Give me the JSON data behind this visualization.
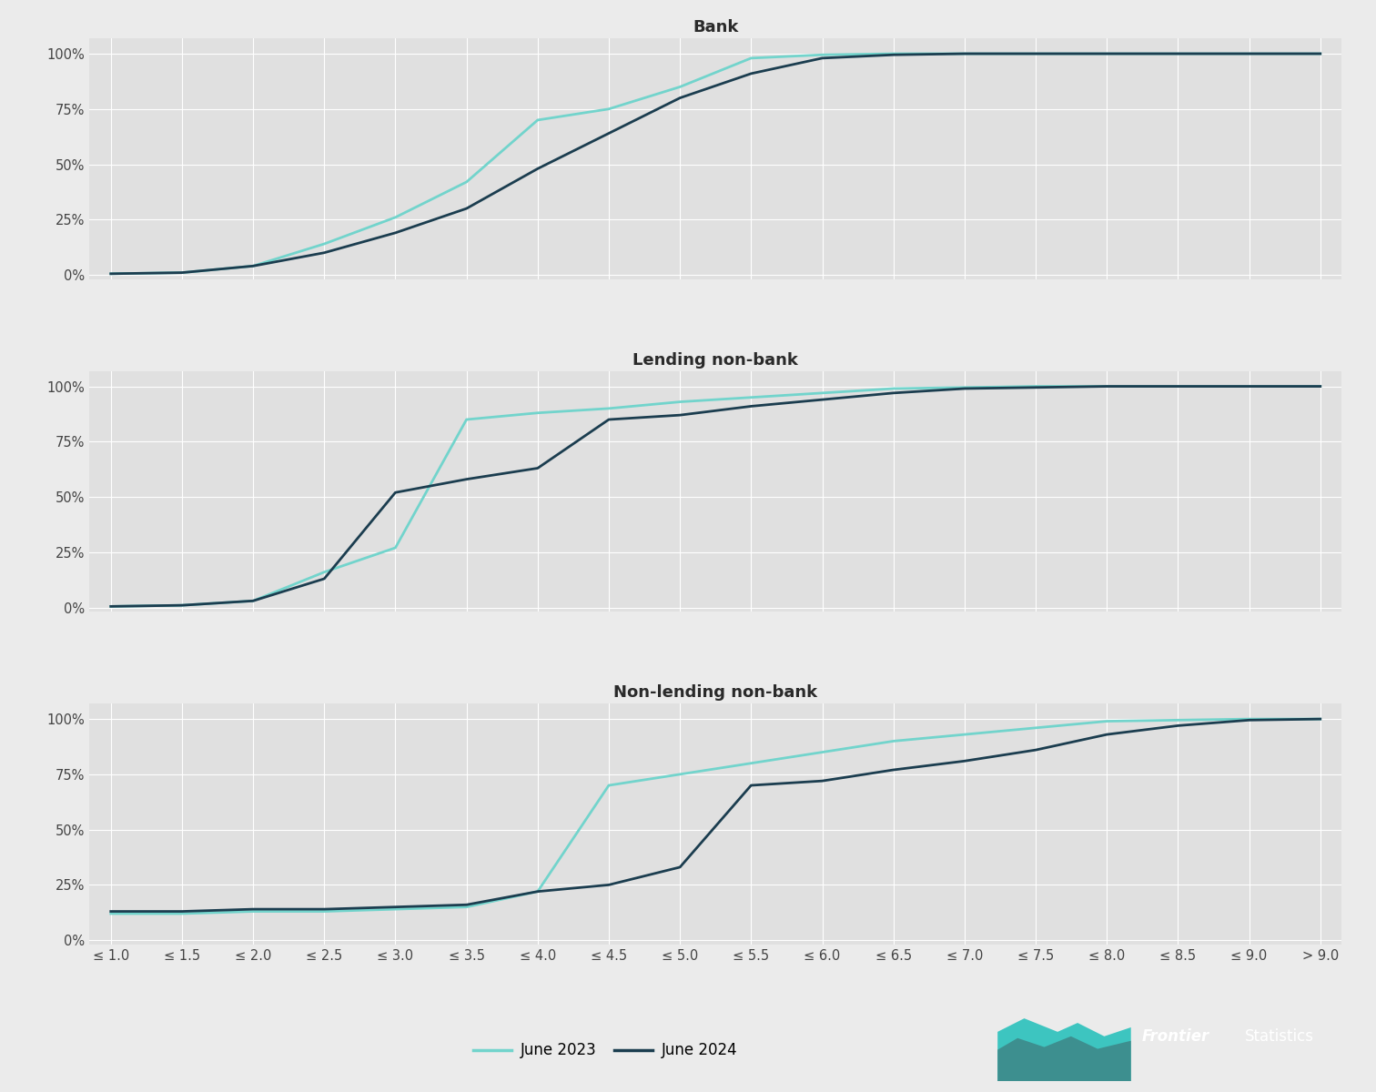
{
  "x_labels": [
    "≤ 1.0",
    "≤ 1.5",
    "≤ 2.0",
    "≤ 2.5",
    "≤ 3.0",
    "≤ 3.5",
    "≤ 4.0",
    "≤ 4.5",
    "≤ 5.0",
    "≤ 5.5",
    "≤ 6.0",
    "≤ 6.5",
    "≤ 7.0",
    "≤ 7.5",
    "≤ 8.0",
    "≤ 8.5",
    "≤ 9.0",
    "> 9.0"
  ],
  "bank": {
    "title": "Bank",
    "jun2023": [
      0.5,
      1.0,
      4.0,
      14.0,
      26.0,
      42.0,
      70.0,
      75.0,
      85.0,
      98.0,
      99.5,
      100.0,
      100.0,
      100.0,
      100.0,
      100.0,
      100.0,
      100.0
    ],
    "jun2024": [
      0.5,
      1.0,
      4.0,
      10.0,
      19.0,
      30.0,
      48.0,
      64.0,
      80.0,
      91.0,
      98.0,
      99.5,
      100.0,
      100.0,
      100.0,
      100.0,
      100.0,
      100.0
    ]
  },
  "lending_nonbank": {
    "title": "Lending non-bank",
    "jun2023": [
      0.5,
      1.0,
      3.0,
      16.0,
      27.0,
      85.0,
      88.0,
      90.0,
      93.0,
      95.0,
      97.0,
      99.0,
      99.5,
      100.0,
      100.0,
      100.0,
      100.0,
      100.0
    ],
    "jun2024": [
      0.5,
      1.0,
      3.0,
      13.0,
      52.0,
      58.0,
      63.0,
      85.0,
      87.0,
      91.0,
      94.0,
      97.0,
      99.0,
      99.5,
      100.0,
      100.0,
      100.0,
      100.0
    ]
  },
  "nonlending_nonbank": {
    "title": "Non-lending non-bank",
    "jun2023": [
      12.0,
      12.0,
      13.0,
      13.0,
      14.0,
      15.0,
      22.0,
      70.0,
      75.0,
      80.0,
      85.0,
      90.0,
      93.0,
      96.0,
      99.0,
      99.5,
      100.0,
      100.0
    ],
    "jun2024": [
      13.0,
      13.0,
      14.0,
      14.0,
      15.0,
      16.0,
      22.0,
      25.0,
      33.0,
      70.0,
      72.0,
      77.0,
      81.0,
      86.0,
      93.0,
      97.0,
      99.5,
      100.0
    ]
  },
  "color_jun2023": "#72d4cc",
  "color_jun2024": "#1b3d4f",
  "background_color": "#ebebeb",
  "plot_bg_color": "#e0e0e0",
  "grid_color": "#ffffff",
  "line_width": 2.0,
  "legend_label_2023": "June 2023",
  "legend_label_2024": "June 2024",
  "yticks": [
    0,
    25,
    50,
    75,
    100
  ],
  "ytick_labels": [
    "0%",
    "25%",
    "50%",
    "75%",
    "100%"
  ],
  "logo_dark": "#1b3d4f",
  "logo_teal": "#2ab5b5",
  "logo_mid_teal": "#3d8f8f"
}
